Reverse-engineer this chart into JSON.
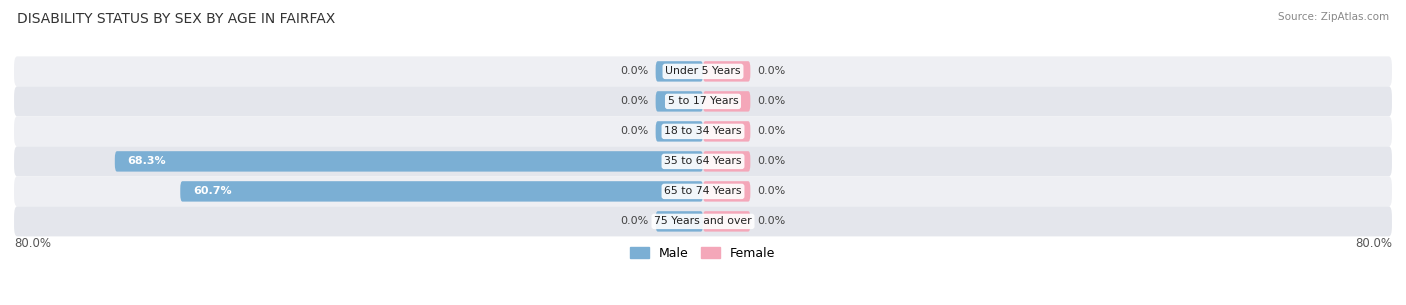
{
  "title": "DISABILITY STATUS BY SEX BY AGE IN FAIRFAX",
  "source": "Source: ZipAtlas.com",
  "categories": [
    "Under 5 Years",
    "5 to 17 Years",
    "18 to 34 Years",
    "35 to 64 Years",
    "65 to 74 Years",
    "75 Years and over"
  ],
  "male_values": [
    0.0,
    0.0,
    0.0,
    68.3,
    60.7,
    0.0
  ],
  "female_values": [
    0.0,
    0.0,
    0.0,
    0.0,
    0.0,
    0.0
  ],
  "male_color": "#7bafd4",
  "female_color": "#f4a7b9",
  "row_bg_odd": "#eeeff3",
  "row_bg_even": "#e4e6ec",
  "xlim": 80.0,
  "legend_male": "Male",
  "legend_female": "Female",
  "stub_size": 5.5
}
